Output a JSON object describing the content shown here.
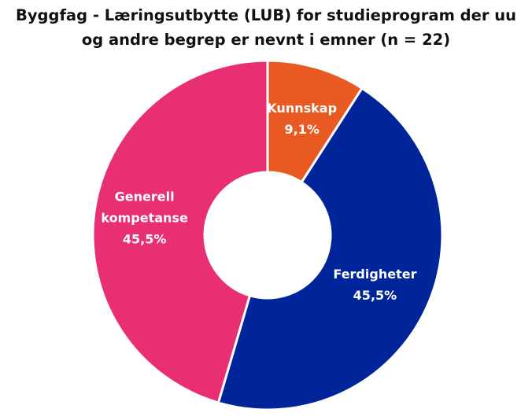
{
  "chart_data": {
    "type": "pie",
    "title_lines": [
      "Byggfag - Læringsutbytte (LUB) for studieprogram der uu",
      "og andre begrep er nevnt i emner (n = 22)"
    ],
    "slices": [
      {
        "label_lines": [
          "Kunnskap"
        ],
        "value": 9.1,
        "value_label": "9,1%",
        "color": "#E95A22"
      },
      {
        "label_lines": [
          "Ferdigheter"
        ],
        "value": 45.5,
        "value_label": "45,5%",
        "color": "#00259B"
      },
      {
        "label_lines": [
          "Generell",
          "kompetanse"
        ],
        "value": 45.5,
        "value_label": "45,5%",
        "color": "#E82F73"
      }
    ],
    "donut": true,
    "legend": "none"
  }
}
